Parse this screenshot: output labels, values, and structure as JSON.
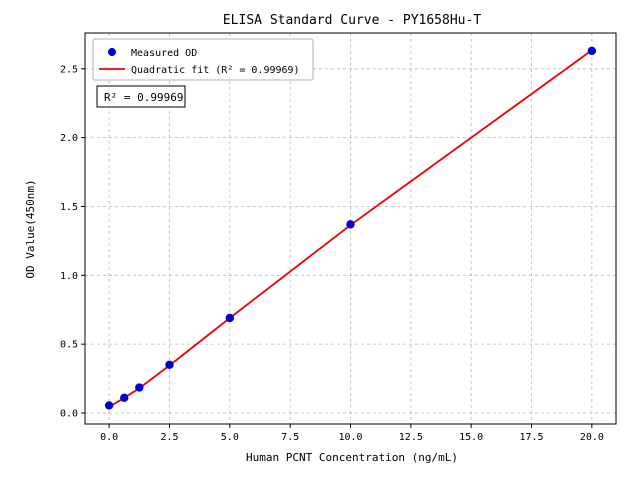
{
  "chart_data": {
    "type": "scatter",
    "title": "ELISA Standard Curve - PY1658Hu-T",
    "xlabel": "Human PCNT Concentration (ng/mL)",
    "ylabel": "OD Value(450nm)",
    "xlim": [
      -1.0,
      21.0
    ],
    "ylim": [
      -0.08,
      2.76
    ],
    "xticks": [
      0.0,
      2.5,
      5.0,
      7.5,
      10.0,
      12.5,
      15.0,
      17.5,
      20.0
    ],
    "yticks": [
      0.0,
      0.5,
      1.0,
      1.5,
      2.0,
      2.5
    ],
    "grid": true,
    "legend_position": "upper left",
    "annotation": "R² = 0.99969",
    "colors": {
      "point": "#0000cd",
      "fit_line": "#ee0000"
    },
    "series": [
      {
        "name": "Measured OD",
        "kind": "scatter",
        "color": "#0000cd",
        "x": [
          0,
          0.625,
          1.25,
          2.5,
          5,
          10,
          20
        ],
        "y": [
          0.055,
          0.11,
          0.185,
          0.35,
          0.69,
          1.37,
          2.63
        ]
      },
      {
        "name": "Quadratic fit (R² = 0.99969)",
        "kind": "line",
        "color": "#ee0000",
        "x": [
          0,
          0.625,
          1.25,
          2.5,
          5,
          10,
          20
        ],
        "y": [
          0.045,
          0.11,
          0.18,
          0.345,
          0.69,
          1.365,
          2.635
        ]
      }
    ]
  }
}
